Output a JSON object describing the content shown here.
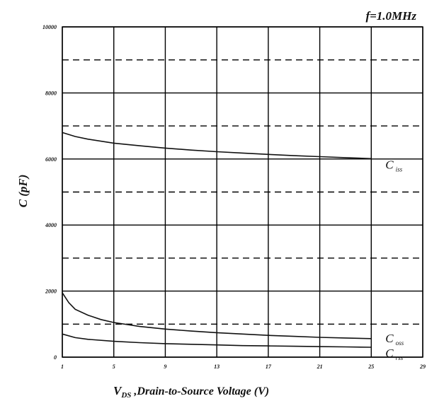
{
  "chart_data": {
    "type": "line",
    "title": "f=1.0MHz",
    "xlabel_main": "V",
    "xlabel_sub": "DS",
    "xlabel_rest": " ,Drain-to-Source Voltage (V)",
    "ylabel": "C (pF)",
    "xlim": [
      1,
      29
    ],
    "ylim": [
      0,
      10000
    ],
    "x_ticks": [
      "1",
      "5",
      "9",
      "13",
      "17",
      "21",
      "25",
      "29"
    ],
    "y_ticks": [
      "0",
      "2000",
      "4000",
      "6000",
      "8000",
      "10000"
    ],
    "y_dashed": [
      1000,
      3000,
      5000,
      7000,
      9000
    ],
    "grid": true,
    "series": [
      {
        "name": "C",
        "sub": "iss",
        "x": [
          1,
          2,
          3,
          5,
          7,
          9,
          11,
          13,
          15,
          17,
          19,
          21,
          23,
          25
        ],
        "values": [
          6800,
          6680,
          6600,
          6480,
          6400,
          6330,
          6270,
          6220,
          6180,
          6140,
          6100,
          6070,
          6040,
          6010
        ]
      },
      {
        "name": "C",
        "sub": "oss",
        "x": [
          1,
          1.5,
          2,
          3,
          4,
          5,
          7,
          9,
          11,
          13,
          15,
          17,
          19,
          21,
          23,
          25
        ],
        "values": [
          1950,
          1650,
          1450,
          1270,
          1140,
          1050,
          930,
          850,
          790,
          740,
          700,
          660,
          630,
          600,
          580,
          560
        ]
      },
      {
        "name": "C",
        "sub": "rss",
        "x": [
          1,
          2,
          3,
          5,
          7,
          9,
          11,
          13,
          15,
          17,
          19,
          21,
          23,
          25
        ],
        "values": [
          700,
          590,
          540,
          480,
          440,
          410,
          390,
          370,
          350,
          340,
          330,
          320,
          310,
          300
        ]
      }
    ]
  }
}
